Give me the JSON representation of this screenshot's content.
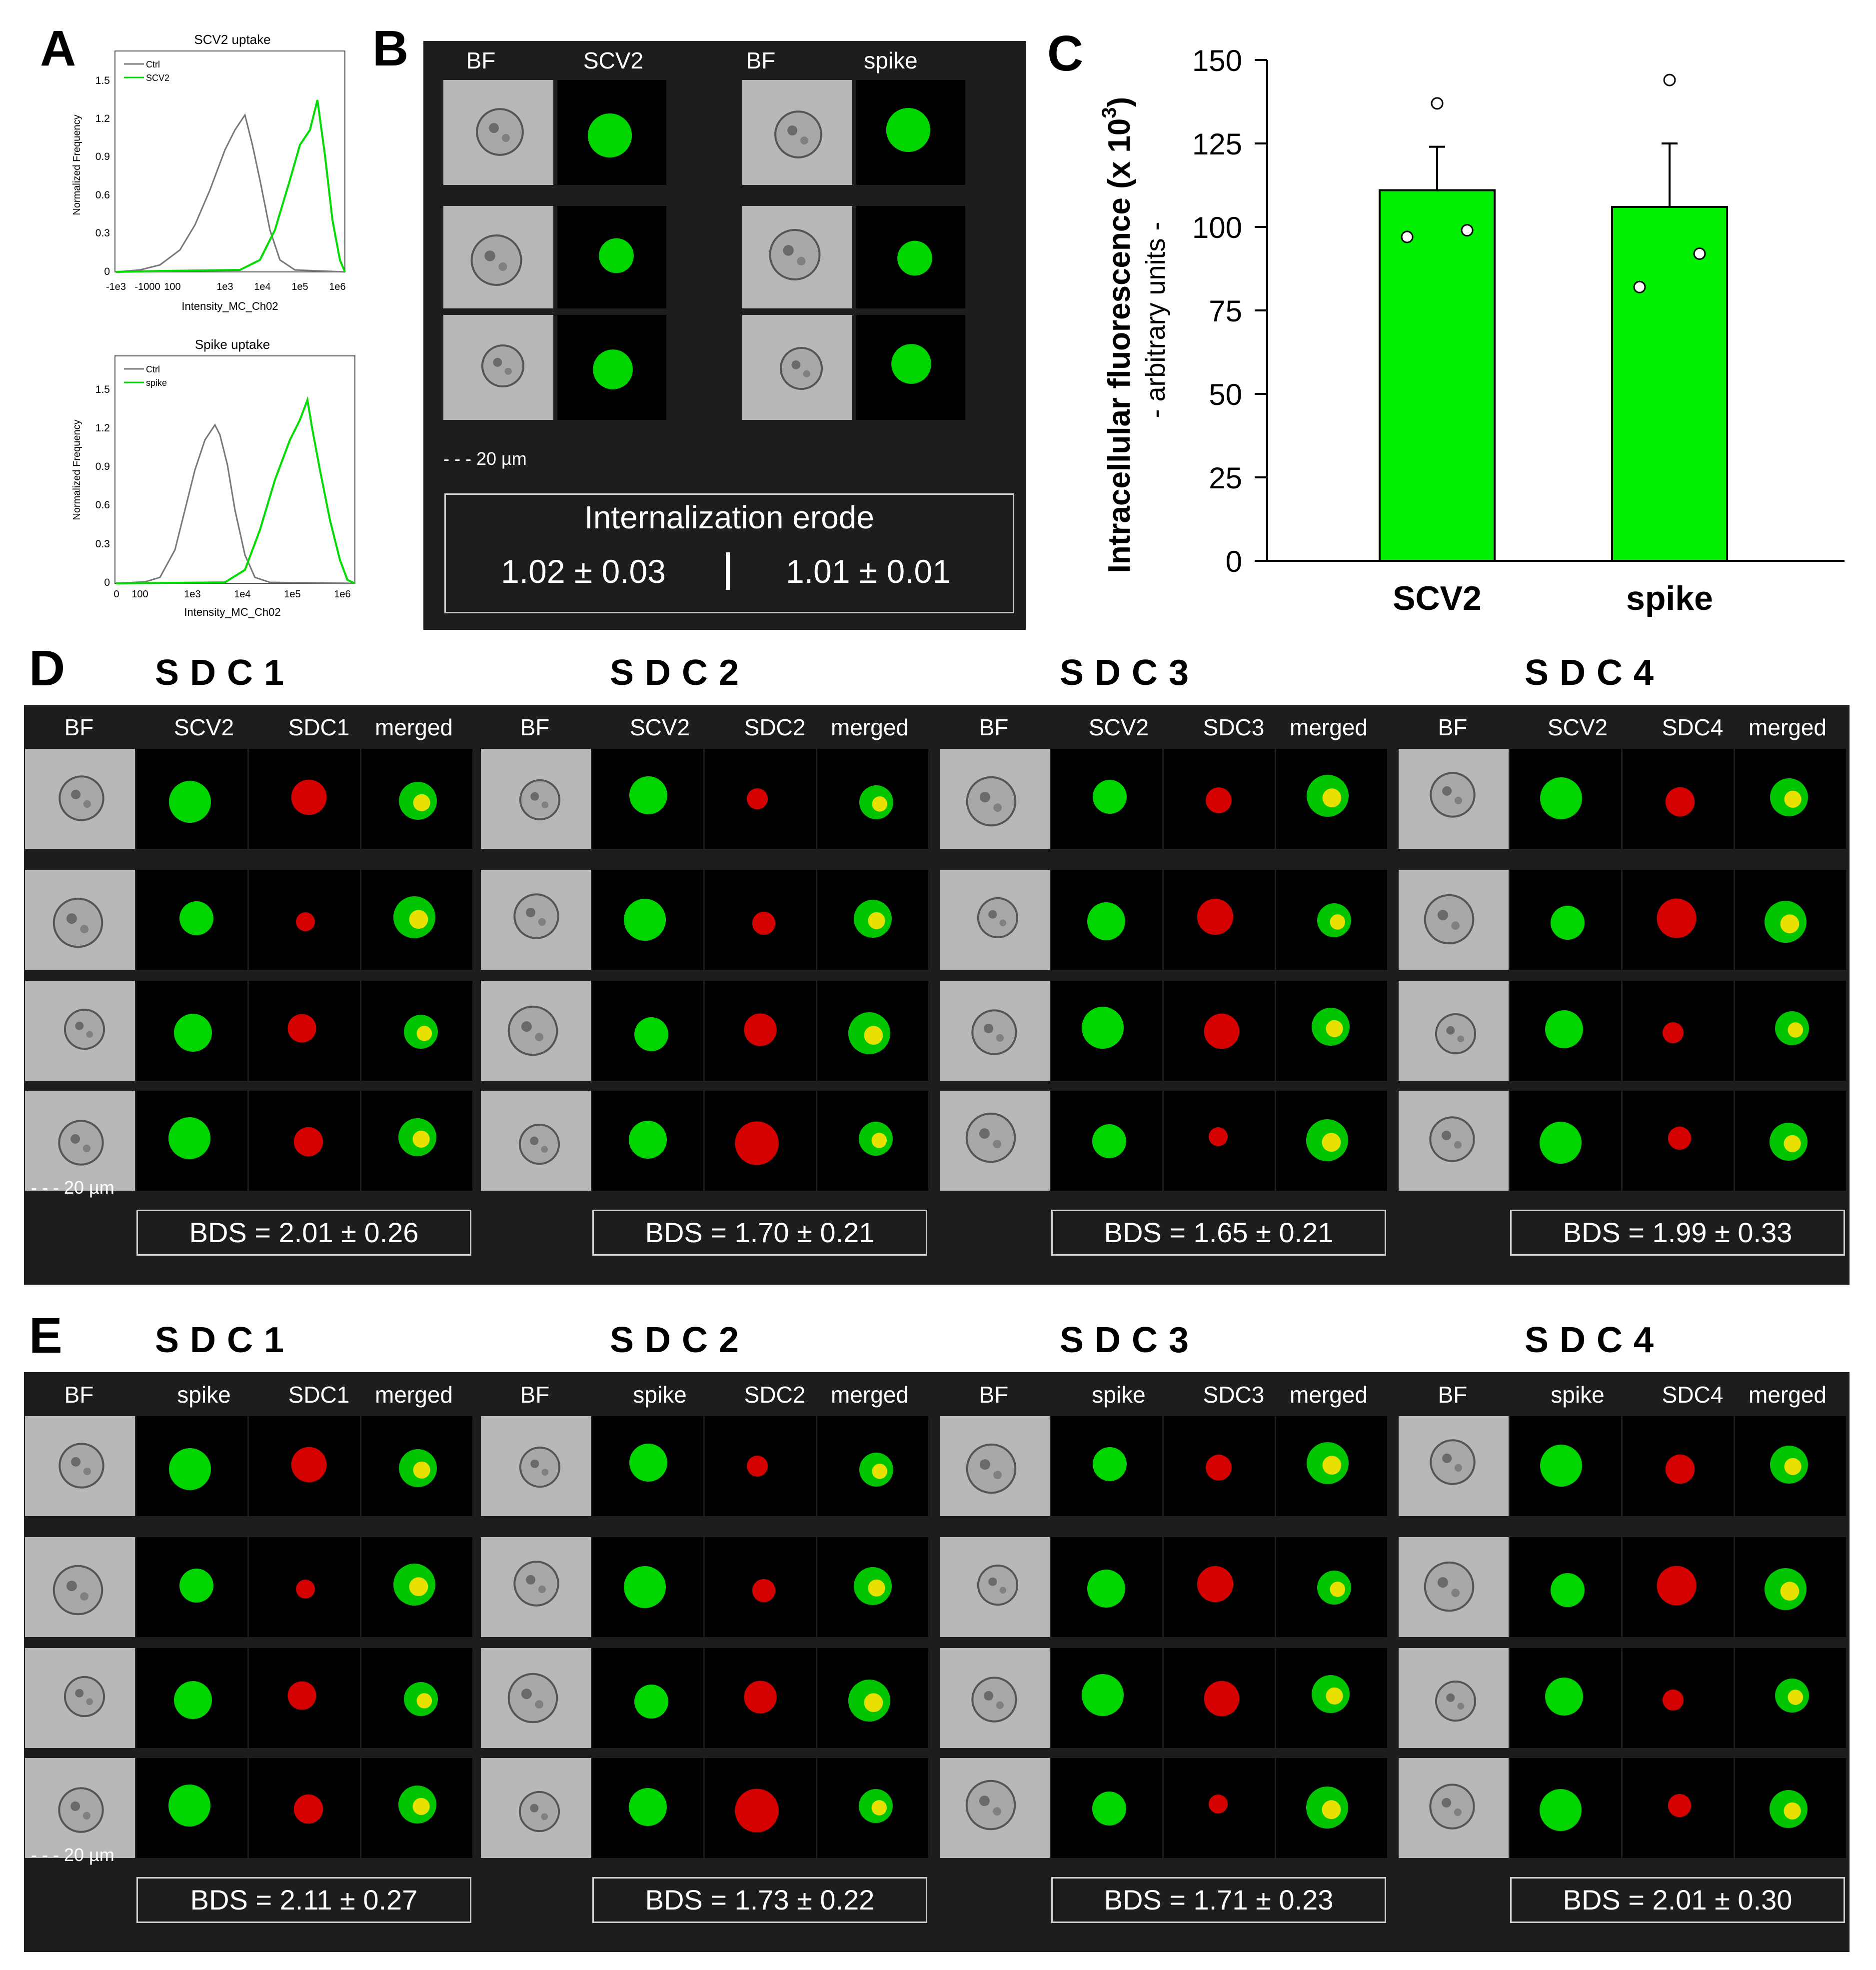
{
  "panel_labels": {
    "A": "A",
    "B": "B",
    "C": "C",
    "D": "D",
    "E": "E"
  },
  "panelA": {
    "plots": [
      {
        "title": "SCV2 uptake",
        "xlabel": "Intensity_MC_Ch02",
        "ylabel": "Normalized Frequency",
        "xticks": [
          "-1e3",
          "-1000",
          "100",
          "1e3",
          "1e4",
          "1e5",
          "1e6"
        ],
        "yticks": [
          "0",
          "0.3",
          "0.6",
          "0.9",
          "1.2",
          "1.5"
        ],
        "legend": [
          "Ctrl",
          "SCV2"
        ]
      },
      {
        "title": "Spike uptake",
        "xlabel": "Intensity_MC_Ch02",
        "ylabel": "Normalized Frequency",
        "xticks": [
          "0",
          "100",
          "1e3",
          "1e4",
          "1e5",
          "1e6"
        ],
        "yticks": [
          "0",
          "0.3",
          "0.6",
          "0.9",
          "1.2",
          "1.5"
        ],
        "legend": [
          "Ctrl",
          "spike"
        ]
      }
    ]
  },
  "panelB": {
    "headers": [
      "BF",
      "SCV2",
      "BF",
      "spike"
    ],
    "scale": "20 µm",
    "box_title": "Internalization erode",
    "values": [
      "1.02 ± 0.03",
      "1.01 ± 0.01"
    ]
  },
  "chart_data": {
    "type": "bar",
    "categories": [
      "SCV2",
      "spike"
    ],
    "values": [
      111,
      106
    ],
    "errors": [
      13,
      19
    ],
    "points": [
      [
        97,
        99,
        137
      ],
      [
        82,
        92,
        144
      ]
    ],
    "ylabel_line1": "Intracellular fluorescence (x 10",
    "ylabel_sup": "3",
    "ylabel_line1_end": ")",
    "ylabel_line2": "- arbitrary units -",
    "yticks": [
      "0",
      "25",
      "50",
      "75",
      "100",
      "125",
      "150"
    ],
    "ylim": [
      0,
      150
    ],
    "bar_color": "#00ee00"
  },
  "panelD": {
    "groups": [
      {
        "title": "SDC1",
        "headers": [
          "BF",
          "SCV2",
          "SDC1",
          "merged"
        ],
        "bds": "BDS = 2.01 ± 0.26"
      },
      {
        "title": "SDC2",
        "headers": [
          "BF",
          "SCV2",
          "SDC2",
          "merged"
        ],
        "bds": "BDS = 1.70 ± 0.21"
      },
      {
        "title": "SDC3",
        "headers": [
          "BF",
          "SCV2",
          "SDC3",
          "merged"
        ],
        "bds": "BDS = 1.65 ± 0.21"
      },
      {
        "title": "SDC4",
        "headers": [
          "BF",
          "SCV2",
          "SDC4",
          "merged"
        ],
        "bds": "BDS = 1.99 ± 0.33"
      }
    ],
    "scale": "20 µm"
  },
  "panelE": {
    "groups": [
      {
        "title": "SDC1",
        "headers": [
          "BF",
          "spike",
          "SDC1",
          "merged"
        ],
        "bds": "BDS = 2.11 ± 0.27"
      },
      {
        "title": "SDC2",
        "headers": [
          "BF",
          "spike",
          "SDC2",
          "merged"
        ],
        "bds": "BDS = 1.73 ± 0.22"
      },
      {
        "title": "SDC3",
        "headers": [
          "BF",
          "spike",
          "SDC3",
          "merged"
        ],
        "bds": "BDS = 1.71 ± 0.23"
      },
      {
        "title": "SDC4",
        "headers": [
          "BF",
          "spike",
          "SDC4",
          "merged"
        ],
        "bds": "BDS = 2.01 ± 0.30"
      }
    ],
    "scale": "20 µm"
  }
}
